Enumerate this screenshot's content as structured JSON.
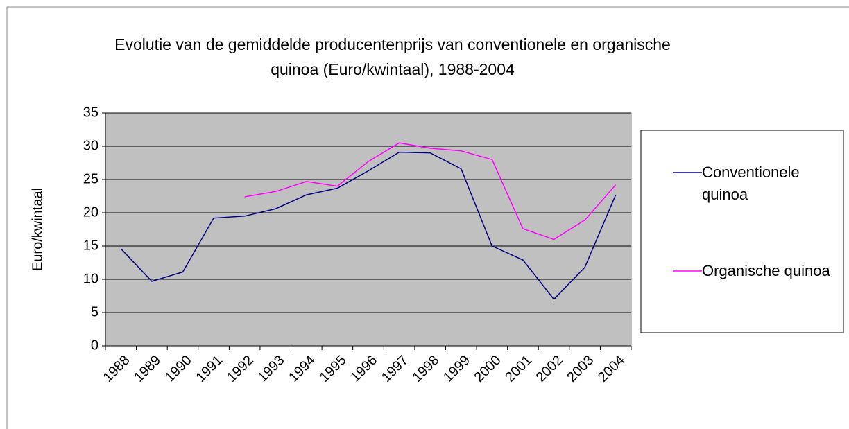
{
  "chart_data": {
    "type": "line",
    "title": "Evolutie van de gemiddelde producentenprijs van conventionele en organische quinoa (Euro/kwintaal), 1988-2004",
    "y_label": "Euro/kwintaal",
    "categories": [
      "1988",
      "1989",
      "1990",
      "1991",
      "1992",
      "1993",
      "1994",
      "1995",
      "1996",
      "1997",
      "1998",
      "1999",
      "2000",
      "2001",
      "2002",
      "2003",
      "2004"
    ],
    "series": [
      {
        "name": "Conventionele quinoa",
        "color": "#000080",
        "values": [
          14.6,
          9.7,
          11.1,
          19.2,
          19.5,
          20.6,
          22.7,
          23.7,
          26.3,
          29.1,
          29.0,
          26.6,
          15.0,
          12.9,
          7.0,
          11.8,
          22.7
        ]
      },
      {
        "name": "Organische quinoa",
        "color": "#ff00ff",
        "values": [
          null,
          null,
          null,
          null,
          22.4,
          23.2,
          24.7,
          24.0,
          27.7,
          30.5,
          29.7,
          29.3,
          28.0,
          17.6,
          16.0,
          18.9,
          24.2
        ]
      }
    ],
    "ylim": [
      0,
      35
    ],
    "yticks": [
      0,
      5,
      10,
      15,
      20,
      25,
      30,
      35
    ],
    "grid": true,
    "legend": "right"
  }
}
